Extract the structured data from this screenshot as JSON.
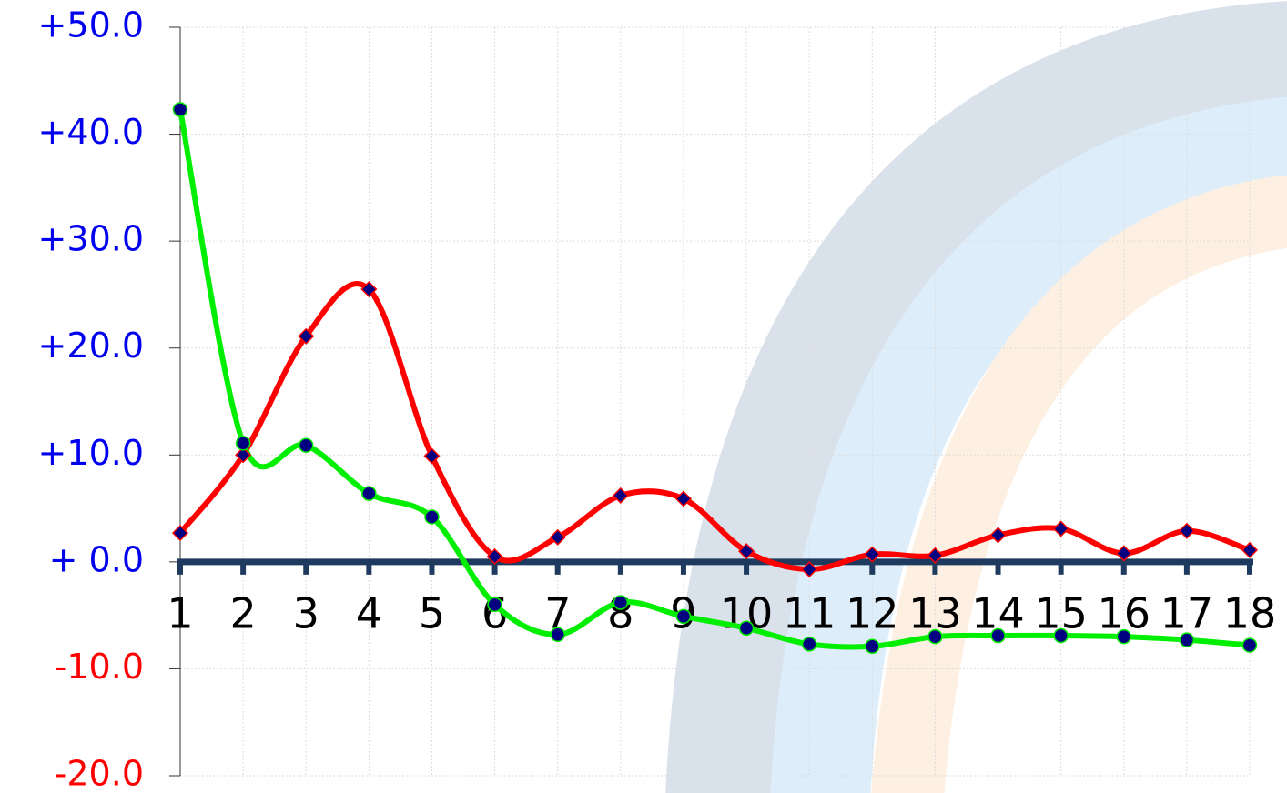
{
  "chart_data": {
    "type": "line",
    "categories": [
      "1",
      "2",
      "3",
      "4",
      "5",
      "6",
      "7",
      "8",
      "9",
      "10",
      "11",
      "12",
      "13",
      "14",
      "15",
      "16",
      "17",
      "18"
    ],
    "series": [
      {
        "color": "#ff0000",
        "marker": "diamond",
        "values": [
          2.7,
          10.0,
          21.1,
          25.5,
          9.9,
          0.5,
          2.3,
          6.2,
          5.9,
          1.0,
          -0.7,
          0.7,
          0.6,
          2.5,
          3.1,
          0.8,
          2.9,
          1.1
        ]
      },
      {
        "color": "#00ee00",
        "marker": "circle",
        "values": [
          42.3,
          11.1,
          10.9,
          6.4,
          4.2,
          -4.0,
          -6.8,
          -3.8,
          -5.1,
          -6.2,
          -7.7,
          -7.9,
          -7.0,
          -6.9,
          -6.9,
          -7.0,
          -7.3,
          -7.8
        ]
      }
    ],
    "ylim": [
      -20,
      50
    ],
    "yticks": [
      {
        "value": 50,
        "label": "+50.0"
      },
      {
        "value": 40,
        "label": "+40.0"
      },
      {
        "value": 30,
        "label": "+30.0"
      },
      {
        "value": 20,
        "label": "+20.0"
      },
      {
        "value": 10,
        "label": "+10.0"
      },
      {
        "value": 0,
        "label": "+ 0.0"
      },
      {
        "value": -10,
        "label": "-10.0"
      },
      {
        "value": -20,
        "label": "-20.0"
      }
    ],
    "grid": true,
    "smooth": true
  }
}
